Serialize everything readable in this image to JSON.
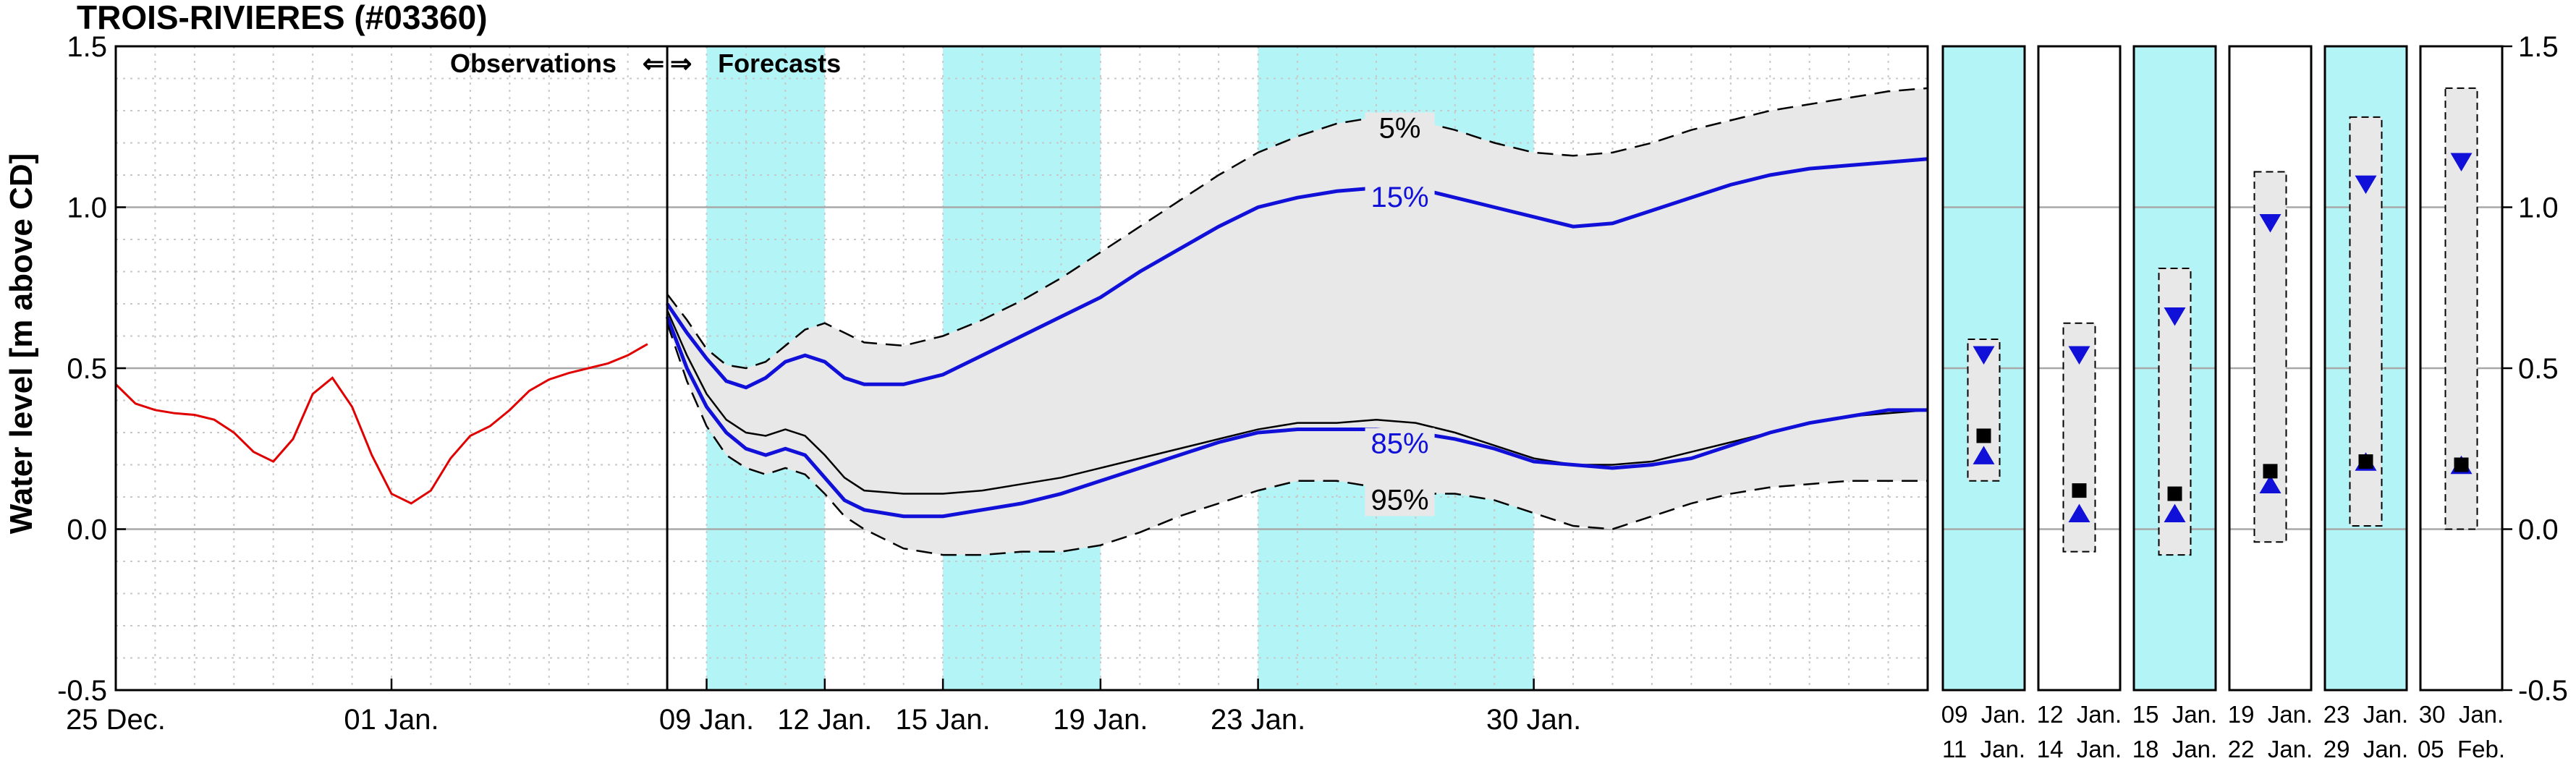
{
  "chart_data": {
    "type": "line",
    "title": "TROIS-RIVIERES (#03360)",
    "ylabel": "Water level [m above CD]",
    "xlabel": "",
    "ylim": [
      -0.5,
      1.5
    ],
    "xlim": [
      0,
      46
    ],
    "y_ticks": [
      "-0.5",
      "0.0",
      "0.5",
      "1.0",
      "1.5"
    ],
    "x_ticks": [
      {
        "x": 0,
        "label": "25 Dec."
      },
      {
        "x": 7,
        "label": "01 Jan."
      },
      {
        "x": 15,
        "label": "09 Jan."
      },
      {
        "x": 18,
        "label": "12 Jan."
      },
      {
        "x": 21,
        "label": "15 Jan."
      },
      {
        "x": 25,
        "label": "19 Jan."
      },
      {
        "x": 29,
        "label": "23 Jan."
      },
      {
        "x": 36,
        "label": "30 Jan."
      }
    ],
    "divider_x": 14,
    "observations_label": "Observations",
    "forecasts_label": "Forecasts",
    "arrow_left": "⇐",
    "arrow_right": "⇒",
    "grid": true,
    "shaded_periods": [
      [
        15,
        18
      ],
      [
        21,
        25
      ],
      [
        29,
        36
      ]
    ],
    "shade_color": "#b3f5f7",
    "band_color": "#e8e8e8",
    "observations": {
      "color": "#e00000",
      "x": [
        0,
        0.5,
        1,
        1.5,
        2,
        2.5,
        3,
        3.5,
        4,
        4.5,
        5,
        5.5,
        6,
        6.5,
        7,
        7.5,
        8,
        8.5,
        9,
        9.5,
        10,
        10.5,
        11,
        11.5,
        12,
        12.5,
        13,
        13.5
      ],
      "y": [
        0.45,
        0.39,
        0.37,
        0.36,
        0.355,
        0.34,
        0.3,
        0.24,
        0.21,
        0.28,
        0.42,
        0.47,
        0.38,
        0.23,
        0.11,
        0.08,
        0.12,
        0.22,
        0.29,
        0.32,
        0.37,
        0.43,
        0.465,
        0.485,
        0.5,
        0.515,
        0.54,
        0.575
      ]
    },
    "series": [
      {
        "name": "5%",
        "style": "dashed",
        "color": "#000000",
        "x": [
          14,
          14.5,
          15,
          15.5,
          16,
          16.5,
          17,
          17.5,
          18,
          18.5,
          19,
          20,
          21,
          22,
          23,
          24,
          25,
          26,
          27,
          28,
          29,
          30,
          31,
          32,
          33,
          34,
          35,
          36,
          37,
          38,
          39,
          40,
          41,
          42,
          43,
          44,
          45,
          46
        ],
        "y": [
          0.73,
          0.65,
          0.56,
          0.51,
          0.5,
          0.52,
          0.57,
          0.62,
          0.64,
          0.61,
          0.58,
          0.57,
          0.6,
          0.65,
          0.71,
          0.78,
          0.86,
          0.94,
          1.02,
          1.1,
          1.17,
          1.22,
          1.26,
          1.28,
          1.27,
          1.24,
          1.2,
          1.17,
          1.16,
          1.17,
          1.2,
          1.24,
          1.27,
          1.3,
          1.32,
          1.34,
          1.36,
          1.37
        ]
      },
      {
        "name": "15%",
        "style": "solid",
        "color": "#1010d8",
        "x": [
          14,
          14.5,
          15,
          15.5,
          16,
          16.5,
          17,
          17.5,
          18,
          18.5,
          19,
          20,
          21,
          22,
          23,
          24,
          25,
          26,
          27,
          28,
          29,
          30,
          31,
          32,
          33,
          34,
          35,
          36,
          37,
          38,
          39,
          40,
          41,
          42,
          43,
          44,
          45,
          46
        ],
        "y": [
          0.7,
          0.61,
          0.53,
          0.46,
          0.44,
          0.47,
          0.52,
          0.54,
          0.52,
          0.47,
          0.45,
          0.45,
          0.48,
          0.54,
          0.6,
          0.66,
          0.72,
          0.8,
          0.87,
          0.94,
          1.0,
          1.03,
          1.05,
          1.06,
          1.06,
          1.03,
          1.0,
          0.97,
          0.94,
          0.95,
          0.99,
          1.03,
          1.07,
          1.1,
          1.12,
          1.13,
          1.14,
          1.15
        ]
      },
      {
        "name": "median",
        "style": "solid",
        "color": "#000000",
        "x": [
          14,
          14.5,
          15,
          15.5,
          16,
          16.5,
          17,
          17.5,
          18,
          18.5,
          19,
          20,
          21,
          22,
          23,
          24,
          25,
          26,
          27,
          28,
          29,
          30,
          31,
          32,
          33,
          34,
          35,
          36,
          37,
          38,
          39,
          40,
          41,
          42,
          43,
          44,
          45,
          46
        ],
        "y": [
          0.68,
          0.54,
          0.42,
          0.34,
          0.3,
          0.29,
          0.31,
          0.29,
          0.23,
          0.16,
          0.12,
          0.11,
          0.11,
          0.12,
          0.14,
          0.16,
          0.19,
          0.22,
          0.25,
          0.28,
          0.31,
          0.33,
          0.33,
          0.34,
          0.33,
          0.3,
          0.26,
          0.22,
          0.2,
          0.2,
          0.21,
          0.24,
          0.27,
          0.3,
          0.33,
          0.35,
          0.36,
          0.37
        ]
      },
      {
        "name": "85%",
        "style": "solid",
        "color": "#1010d8",
        "x": [
          14,
          14.5,
          15,
          15.5,
          16,
          16.5,
          17,
          17.5,
          18,
          18.5,
          19,
          20,
          21,
          22,
          23,
          24,
          25,
          26,
          27,
          28,
          29,
          30,
          31,
          32,
          33,
          34,
          35,
          36,
          37,
          38,
          39,
          40,
          41,
          42,
          43,
          44,
          45,
          46
        ],
        "y": [
          0.66,
          0.5,
          0.38,
          0.3,
          0.25,
          0.23,
          0.25,
          0.23,
          0.16,
          0.09,
          0.06,
          0.04,
          0.04,
          0.06,
          0.08,
          0.11,
          0.15,
          0.19,
          0.23,
          0.27,
          0.3,
          0.31,
          0.31,
          0.31,
          0.3,
          0.28,
          0.25,
          0.21,
          0.2,
          0.19,
          0.2,
          0.22,
          0.26,
          0.3,
          0.33,
          0.35,
          0.37,
          0.37
        ]
      },
      {
        "name": "95%",
        "style": "dashed",
        "color": "#000000",
        "x": [
          14,
          14.5,
          15,
          15.5,
          16,
          16.5,
          17,
          17.5,
          18,
          18.5,
          19,
          20,
          21,
          22,
          23,
          24,
          25,
          26,
          27,
          28,
          29,
          30,
          31,
          32,
          33,
          34,
          35,
          36,
          37,
          38,
          39,
          40,
          41,
          42,
          43,
          44,
          45,
          46
        ],
        "y": [
          0.64,
          0.46,
          0.32,
          0.23,
          0.19,
          0.17,
          0.19,
          0.17,
          0.11,
          0.04,
          0.0,
          -0.06,
          -0.08,
          -0.08,
          -0.07,
          -0.07,
          -0.05,
          -0.01,
          0.04,
          0.08,
          0.12,
          0.15,
          0.15,
          0.13,
          0.11,
          0.11,
          0.09,
          0.05,
          0.01,
          0.0,
          0.04,
          0.08,
          0.11,
          0.13,
          0.14,
          0.15,
          0.15,
          0.15
        ]
      }
    ],
    "series_labels": [
      {
        "series": "5%",
        "x": 32.6,
        "y": 1.245,
        "color": "#000000"
      },
      {
        "series": "15%",
        "x": 32.6,
        "y": 1.03,
        "color": "#1010d8"
      },
      {
        "series": "85%",
        "x": 32.6,
        "y": 0.265,
        "color": "#1010d8"
      },
      {
        "series": "95%",
        "x": 32.6,
        "y": 0.09,
        "color": "#000000"
      }
    ],
    "weekly_panels": [
      {
        "start": "09  Jan.",
        "end": "11  Jan.",
        "shaded": true,
        "high": 0.59,
        "low": 0.15,
        "p15": 0.54,
        "median": 0.29,
        "p85": 0.23
      },
      {
        "start": "12  Jan.",
        "end": "14  Jan.",
        "shaded": false,
        "high": 0.64,
        "low": -0.07,
        "p15": 0.54,
        "median": 0.12,
        "p85": 0.05
      },
      {
        "start": "15  Jan.",
        "end": "18  Jan.",
        "shaded": true,
        "high": 0.81,
        "low": -0.08,
        "p15": 0.66,
        "median": 0.11,
        "p85": 0.05
      },
      {
        "start": "19  Jan.",
        "end": "22  Jan.",
        "shaded": false,
        "high": 1.11,
        "low": -0.04,
        "p15": 0.95,
        "median": 0.18,
        "p85": 0.14
      },
      {
        "start": "23  Jan.",
        "end": "29  Jan.",
        "shaded": true,
        "high": 1.28,
        "low": 0.01,
        "p15": 1.07,
        "median": 0.21,
        "p85": 0.21
      },
      {
        "start": "30  Jan.",
        "end": "05  Feb.",
        "shaded": false,
        "high": 1.37,
        "low": 0.0,
        "p15": 1.14,
        "median": 0.2,
        "p85": 0.2
      }
    ]
  }
}
